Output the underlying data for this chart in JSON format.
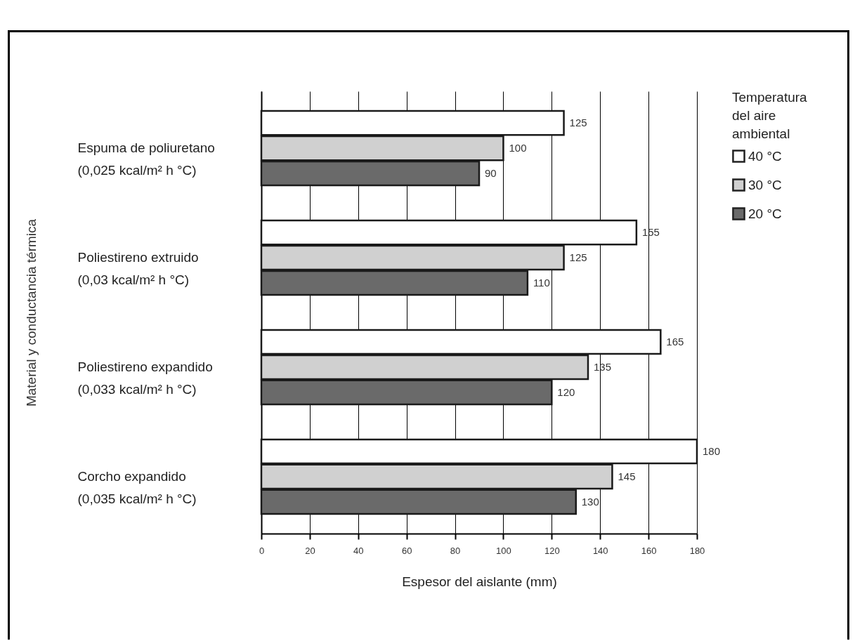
{
  "chart_data": {
    "type": "bar",
    "orientation": "horizontal",
    "categories": [
      "Espuma de poliuretano\n(0,025 kcal/m² h °C)",
      "Poliestireno extruido\n(0,03 kcal/m² h °C)",
      "Poliestireno expandido\n(0,033 kcal/m² h °C)",
      "Corcho expandido\n(0,035 kcal/m² h °C)"
    ],
    "series": [
      {
        "name": "40 °C",
        "color": "#ffffff",
        "values": [
          125,
          155,
          165,
          180
        ]
      },
      {
        "name": "30 °C",
        "color": "#d0d0d0",
        "values": [
          100,
          125,
          135,
          145
        ]
      },
      {
        "name": "20 °C",
        "color": "#6a6a6a",
        "values": [
          90,
          110,
          120,
          130
        ]
      }
    ],
    "xlim": [
      0,
      180
    ],
    "xticks": [
      0,
      20,
      40,
      60,
      80,
      100,
      120,
      140,
      160,
      180
    ],
    "xlabel": "Espesor del aislante (mm)",
    "ylabel": "Material y conductancia térmica",
    "legend_title": "Temperatura\ndel aire\nambiental",
    "legend": "top right",
    "grid": "x",
    "data_labels": true
  }
}
